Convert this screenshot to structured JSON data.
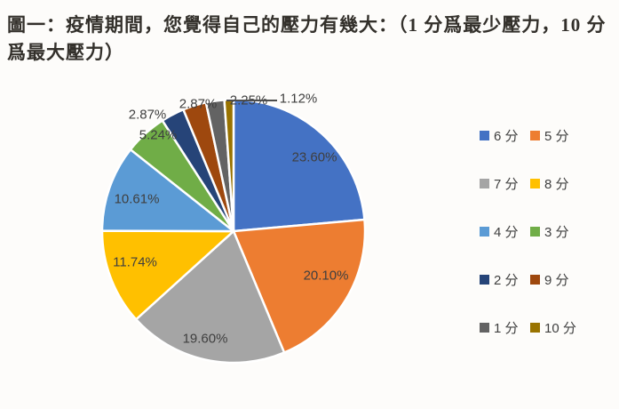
{
  "title": {
    "text": "圖一：疫情期間，您覺得自己的壓力有幾大：（1 分爲最少壓力，10 分爲最大壓力）"
  },
  "chart_data": {
    "type": "pie",
    "title": "疫情期間，您覺得自己的壓力有幾大（1 分爲最少壓力，10 分爲最大壓力）",
    "categories": [
      "6 分",
      "5 分",
      "7 分",
      "8 分",
      "4 分",
      "3 分",
      "2 分",
      "9 分",
      "1 分",
      "10 分"
    ],
    "values": [
      23.6,
      20.1,
      19.6,
      11.74,
      10.61,
      5.24,
      2.87,
      2.87,
      2.25,
      1.12
    ],
    "labels": [
      "23.60%",
      "20.10%",
      "19.60%",
      "11.74%",
      "10.61%",
      "5.24%",
      "2.87%",
      "2.87%",
      "2.25%",
      "1.12%"
    ],
    "colors": [
      "#4472C4",
      "#ED7D31",
      "#A5A5A5",
      "#FFC000",
      "#5B9BD5",
      "#70AD47",
      "#264478",
      "#9E480E",
      "#636363",
      "#997300"
    ],
    "start_angle_deg": 0,
    "direction": "clockwise",
    "slice_border_color": "#ffffff",
    "label_color": "#3f3f3f",
    "legend_position": "right",
    "legend_columns": 2,
    "has_leader_line_for": "10 分"
  }
}
